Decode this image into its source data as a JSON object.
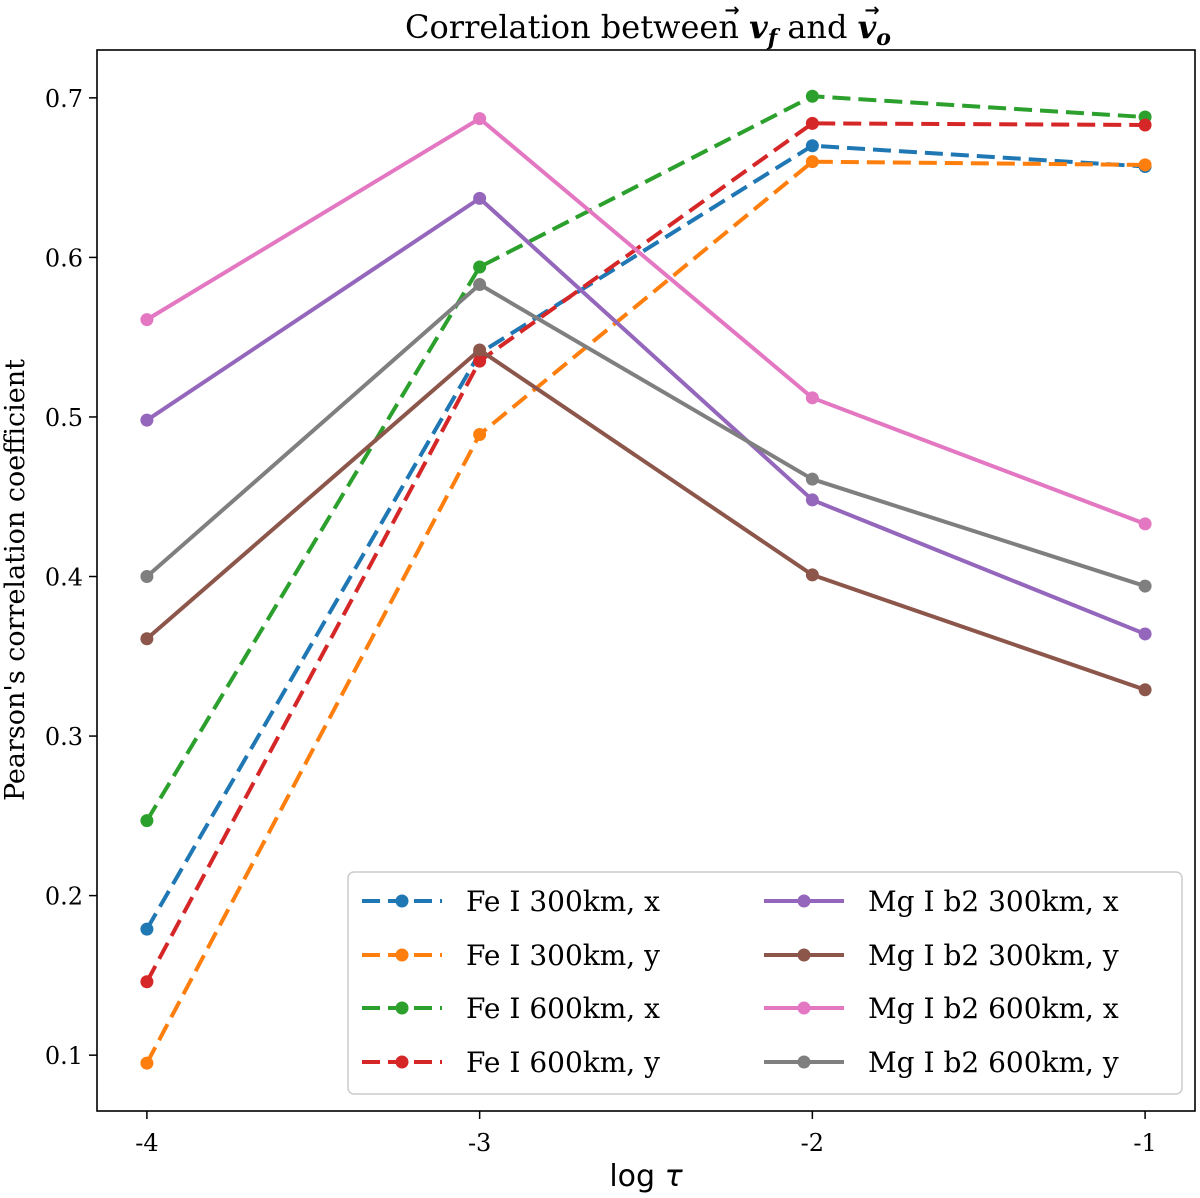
{
  "chart_data": {
    "type": "line",
    "title": "Correlation between v⃗f and v⃗o",
    "title_parts": {
      "prefix": "Correlation between ",
      "v1_base": "v",
      "v1_sub": "f",
      "connector": " and ",
      "v2_base": "v",
      "v2_sub": "o",
      "vector_arrow": "→"
    },
    "xlabel": "log τ",
    "xlabel_parts": {
      "text": "log ",
      "symbol": "τ"
    },
    "ylabel": "Pearson's correlation coefficient",
    "x": [
      -4,
      -3,
      -2,
      -1
    ],
    "x_tick_labels": [
      "-4",
      "-3",
      "-2",
      "-1"
    ],
    "xlim": [
      -4.15,
      -0.85
    ],
    "ylim": [
      0.065,
      0.73
    ],
    "y_ticks": [
      0.1,
      0.2,
      0.3,
      0.4,
      0.5,
      0.6,
      0.7
    ],
    "y_tick_labels": [
      "0.1",
      "0.2",
      "0.3",
      "0.4",
      "0.5",
      "0.6",
      "0.7"
    ],
    "grid": false,
    "legend_position": "lower-right",
    "legend_columns": 2,
    "series": [
      {
        "name": "Fe I 300km, x",
        "color": "#1f77b4",
        "dashed": true,
        "values": [
          0.179,
          0.54,
          0.67,
          0.657
        ]
      },
      {
        "name": "Fe I 300km, y",
        "color": "#ff7f0e",
        "dashed": true,
        "values": [
          0.095,
          0.489,
          0.66,
          0.658
        ]
      },
      {
        "name": "Fe I 600km, x",
        "color": "#2ca02c",
        "dashed": true,
        "values": [
          0.247,
          0.594,
          0.701,
          0.688
        ]
      },
      {
        "name": "Fe I 600km, y",
        "color": "#d62728",
        "dashed": true,
        "values": [
          0.146,
          0.535,
          0.684,
          0.683
        ]
      },
      {
        "name": "Mg I b2 300km, x",
        "color": "#9467bd",
        "dashed": false,
        "values": [
          0.498,
          0.637,
          0.448,
          0.364
        ]
      },
      {
        "name": "Mg I b2 300km, y",
        "color": "#8c564b",
        "dashed": false,
        "values": [
          0.361,
          0.542,
          0.401,
          0.329
        ]
      },
      {
        "name": "Mg I b2 600km, x",
        "color": "#e377c2",
        "dashed": false,
        "values": [
          0.561,
          0.687,
          0.512,
          0.433
        ]
      },
      {
        "name": "Mg I b2 600km, y",
        "color": "#7f7f7f",
        "dashed": false,
        "values": [
          0.4,
          0.583,
          0.461,
          0.394
        ]
      }
    ]
  }
}
